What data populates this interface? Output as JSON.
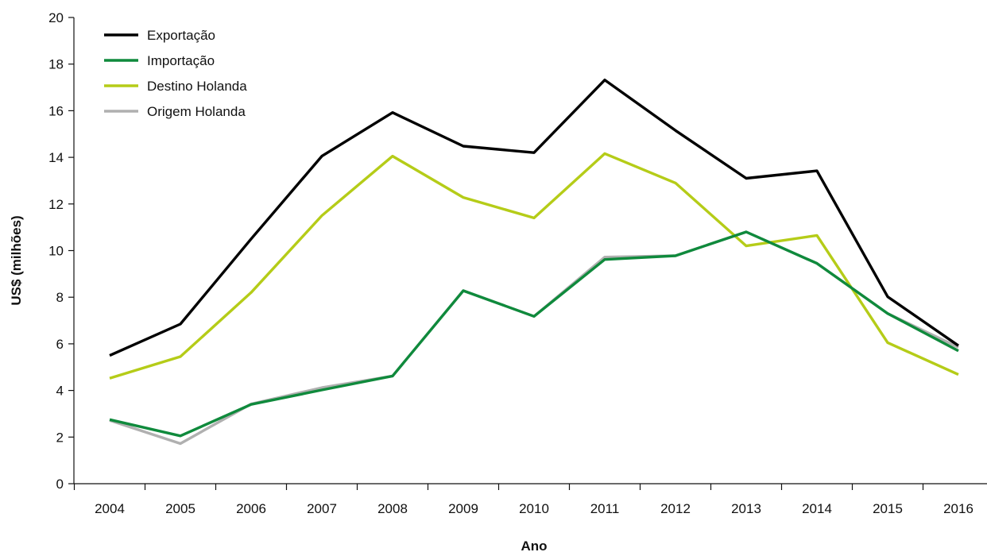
{
  "chart_data": {
    "type": "line",
    "title": "",
    "xlabel": "Ano",
    "ylabel": "US$ (milhões)",
    "ylim": [
      0,
      20
    ],
    "yticks": [
      0,
      2,
      4,
      6,
      8,
      10,
      12,
      14,
      16,
      18,
      20
    ],
    "grid": false,
    "legend_position": "top-left",
    "x": [
      "2004",
      "2005",
      "2006",
      "2007",
      "2008",
      "2009",
      "2010",
      "2011",
      "2012",
      "2013",
      "2014",
      "2015",
      "2016"
    ],
    "series": [
      {
        "name": "Exportação",
        "color": "#000000",
        "values": [
          5.5,
          6.85,
          10.5,
          14.05,
          15.92,
          14.48,
          14.2,
          17.32,
          15.15,
          13.1,
          13.42,
          8.02,
          5.92
        ]
      },
      {
        "name": "Importação",
        "color": "#0f8a3c",
        "values": [
          2.75,
          2.05,
          3.4,
          4.02,
          4.62,
          8.28,
          7.18,
          9.62,
          9.78,
          10.8,
          9.45,
          7.3,
          5.7
        ]
      },
      {
        "name": "Destino Holanda",
        "color": "#b5cc18",
        "values": [
          4.52,
          5.45,
          8.2,
          11.5,
          14.05,
          12.28,
          11.4,
          14.16,
          12.9,
          10.2,
          10.65,
          6.05,
          4.68
        ]
      },
      {
        "name": "Origem Holanda",
        "color": "#b0b0b0",
        "values": [
          2.72,
          1.72,
          3.42,
          4.12,
          4.62,
          8.28,
          7.18,
          9.72,
          9.78,
          10.8,
          9.45,
          7.3,
          5.85
        ]
      }
    ]
  }
}
